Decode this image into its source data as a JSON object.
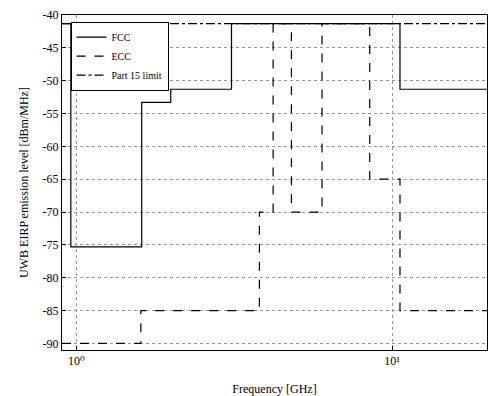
{
  "chart_data": {
    "type": "line",
    "x_label": "Frequency [GHz]",
    "y_label": "UWB EIRP emission level [dBm/MHz]",
    "log": "x",
    "grid": true,
    "legend": "top-left",
    "xlim": [
      0.9,
      20
    ],
    "ylim": [
      -91,
      -40
    ],
    "xticks": [
      {
        "value": 1,
        "label": "10⁰"
      },
      {
        "value": 10,
        "label": "10¹"
      }
    ],
    "yticks": [
      -90,
      -85,
      -80,
      -75,
      -70,
      -65,
      -60,
      -55,
      -50,
      -45,
      -40
    ],
    "series": [
      {
        "name": "FCC",
        "color": "#000000",
        "line_style": "solid",
        "x": [
          0.9,
          0.96,
          1.61,
          1.99,
          3.1,
          10.6,
          20
        ],
        "values": [
          -41.3,
          -75.3,
          -53.3,
          -51.3,
          -41.3,
          -51.3,
          -51.3
        ]
      },
      {
        "name": "ECC",
        "color": "#000000",
        "line_style": "dash",
        "x": [
          0.9,
          1.6,
          3.8,
          4.2,
          4.8,
          6.0,
          8.5,
          10.6,
          20
        ],
        "values": [
          -90,
          -85,
          -70,
          -41.3,
          -70,
          -41.3,
          -65,
          -85,
          -85
        ]
      },
      {
        "name": "Part 15 limit",
        "color": "#000000",
        "line_style": "dashdot",
        "x": [
          0.9,
          20
        ],
        "values": [
          -41.3,
          -41.3
        ]
      }
    ]
  }
}
